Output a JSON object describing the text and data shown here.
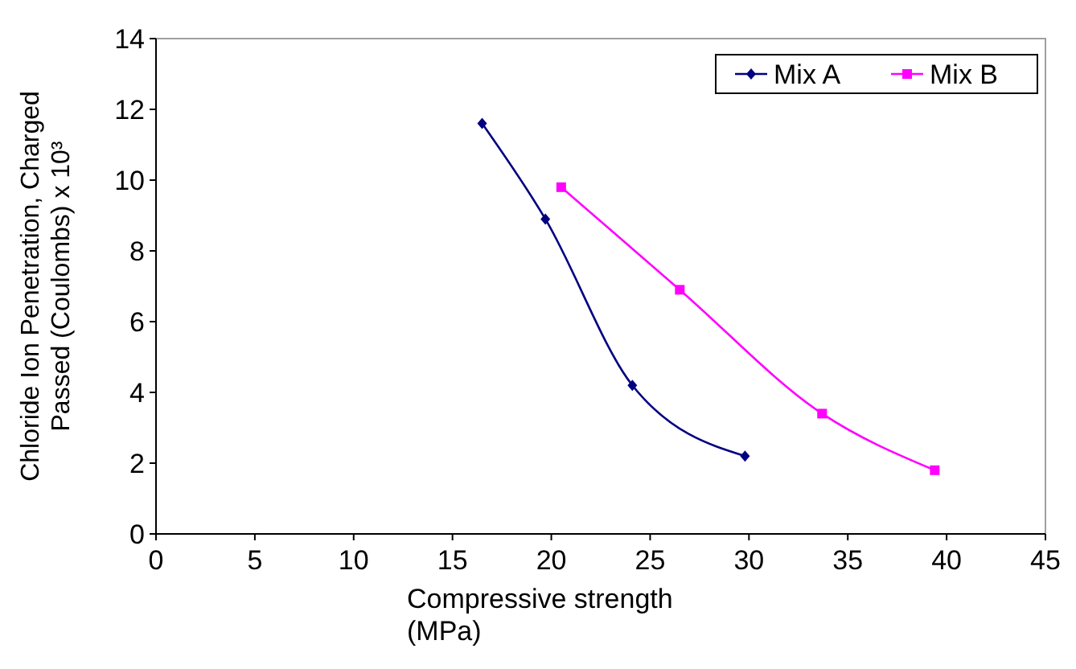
{
  "chart_data": {
    "type": "line",
    "xlabel": "Compressive strength (MPa)",
    "ylabel": "Chloride Ion Penetration, Charged Passed (Coulombs) x 10³",
    "xlim": [
      0,
      45
    ],
    "xticks": [
      0,
      5,
      10,
      15,
      20,
      25,
      30,
      35,
      40,
      45
    ],
    "ylim": [
      0,
      14
    ],
    "yticks": [
      0,
      2,
      4,
      6,
      8,
      10,
      12,
      14
    ],
    "series": [
      {
        "name": "Mix A",
        "color": "#000080",
        "marker": "diamond",
        "x": [
          16.5,
          19.7,
          24.1,
          29.8
        ],
        "values": [
          11.6,
          8.9,
          4.2,
          2.2
        ]
      },
      {
        "name": "Mix B",
        "color": "#ff00ff",
        "marker": "square",
        "x": [
          20.5,
          26.5,
          33.7,
          39.4
        ],
        "values": [
          9.8,
          6.9,
          3.4,
          1.8
        ]
      }
    ],
    "grid": false,
    "legend": "top right"
  }
}
